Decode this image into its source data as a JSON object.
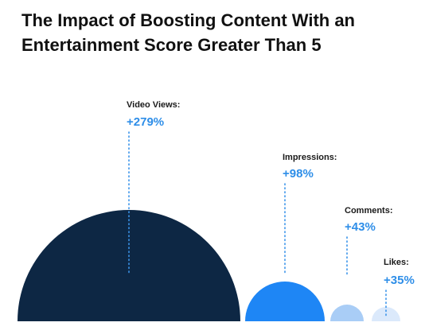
{
  "title_lines": [
    "The Impact of Boosting Content With an",
    "Entertainment Score Greater Than 5"
  ],
  "colors": {
    "accent": "#2e8ee8",
    "dotted_line": "#3b94ea"
  },
  "chart_data": {
    "type": "bubble",
    "title": "The Impact of Boosting Content With an Entertainment Score Greater Than 5",
    "categories": [
      "Video Views:",
      "Impressions:",
      "Comments:",
      "Likes:"
    ],
    "values": [
      279,
      98,
      43,
      35
    ],
    "value_labels": [
      "+279%",
      "+98%",
      "+43%",
      "+35%"
    ],
    "unit": "%",
    "colors": [
      "#0d2744",
      "#1e86f5",
      "#a9cdf6",
      "#dbe9fb"
    ]
  }
}
